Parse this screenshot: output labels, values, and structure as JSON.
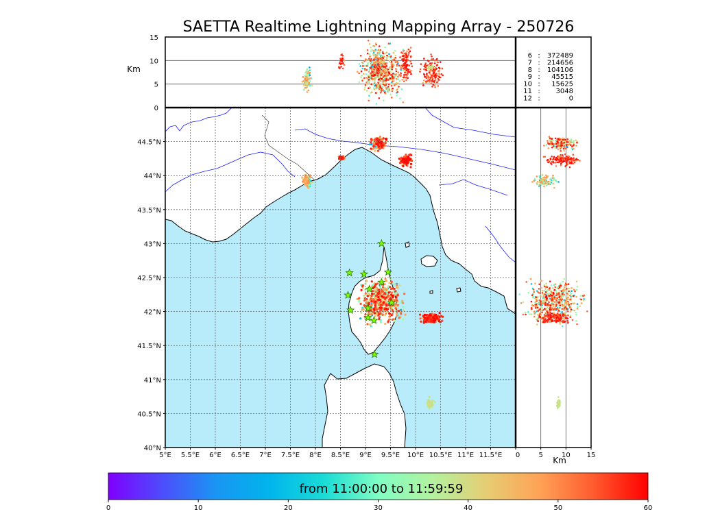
{
  "title": "SAETTA Realtime Lightning Mapping Array - 250726",
  "colors": {
    "sea": "#b8ecfb",
    "land": "#ffffff",
    "river": "#1a1aff",
    "coast": "#000000",
    "grid": "#666666",
    "highlight": "#ff0000"
  },
  "chart_data": {
    "type": "scatter",
    "x_axis": {
      "label": "",
      "ticks": [
        "5°E",
        "5.5°E",
        "6°E",
        "6.5°E",
        "7°E",
        "7.5°E",
        "8°E",
        "8.5°E",
        "9°E",
        "9.5°E",
        "10°E",
        "10.5°E",
        "11°E",
        "11.5°E"
      ],
      "range": [
        5,
        12
      ]
    },
    "y_axis": {
      "label": "",
      "ticks": [
        "40°N",
        "40.5°N",
        "41°N",
        "41.5°N",
        "42°N",
        "42.5°N",
        "43°N",
        "43.5°N",
        "44°N",
        "44.5°N"
      ],
      "range": [
        40,
        45
      ]
    },
    "top_panel": {
      "ylabel": "Km",
      "ticks": [
        "0",
        "5",
        "10",
        "15"
      ],
      "range": [
        0,
        15
      ]
    },
    "side_panel": {
      "xlabel": "Km",
      "ticks": [
        "0",
        "5",
        "10",
        "15"
      ],
      "range": [
        0,
        15
      ]
    },
    "station_counts": [
      {
        "stations": "6",
        "count": "372489",
        "highlight": true
      },
      {
        "stations": "7",
        "count": "214656",
        "highlight": false
      },
      {
        "stations": "8",
        "count": "104106",
        "highlight": false
      },
      {
        "stations": "9",
        "count": "45515",
        "highlight": false
      },
      {
        "stations": "10",
        "count": "15625",
        "highlight": false
      },
      {
        "stations": "11",
        "count": "3048",
        "highlight": false
      },
      {
        "stations": "12",
        "count": "0",
        "highlight": false
      }
    ],
    "colorbar": {
      "label": "from 11:00:00 to 11:59:59",
      "ticks": [
        "0",
        "10",
        "20",
        "30",
        "40",
        "50",
        "60"
      ],
      "range": [
        0,
        60
      ],
      "colors": [
        "#7f00ff",
        "#4d4dfc",
        "#1996f3",
        "#00b5eb",
        "#1adcd6",
        "#7ffec4",
        "#b3f29f",
        "#e6cd73",
        "#ffa256",
        "#ff5a2e",
        "#ff0000"
      ]
    },
    "lightning_clusters": [
      {
        "lon": [
          8.45,
          8.6
        ],
        "lat": [
          44.22,
          44.3
        ],
        "t": [
          45,
          60
        ],
        "alt": [
          7,
          12
        ]
      },
      {
        "lon": [
          9.05,
          9.5
        ],
        "lat": [
          44.35,
          44.6
        ],
        "t": [
          8,
          60
        ],
        "alt": [
          5,
          13
        ]
      },
      {
        "lon": [
          9.65,
          9.95
        ],
        "lat": [
          44.1,
          44.35
        ],
        "t": [
          45,
          60
        ],
        "alt": [
          4,
          14
        ]
      },
      {
        "lon": [
          7.7,
          7.95
        ],
        "lat": [
          43.8,
          44.05
        ],
        "t": [
          5,
          50
        ],
        "alt": [
          3,
          9
        ]
      },
      {
        "lon": [
          8.75,
          9.9
        ],
        "lat": [
          41.75,
          42.55
        ],
        "t": [
          10,
          60
        ],
        "alt": [
          0,
          15
        ]
      },
      {
        "lon": [
          10.05,
          10.6
        ],
        "lat": [
          41.8,
          42.0
        ],
        "t": [
          45,
          60
        ],
        "alt": [
          3,
          12
        ]
      },
      {
        "lon": [
          10.2,
          10.4
        ],
        "lat": [
          40.55,
          40.75
        ],
        "t": [
          28,
          40
        ],
        "alt": [
          8,
          9
        ]
      }
    ],
    "flash_markers": [
      {
        "lon": 8.68,
        "lat": 42.57
      },
      {
        "lon": 8.97,
        "lat": 42.55
      },
      {
        "lon": 9.32,
        "lat": 43.0
      },
      {
        "lon": 9.45,
        "lat": 42.58
      },
      {
        "lon": 8.65,
        "lat": 42.24
      },
      {
        "lon": 9.08,
        "lat": 42.33
      },
      {
        "lon": 9.32,
        "lat": 42.43
      },
      {
        "lon": 8.7,
        "lat": 42.02
      },
      {
        "lon": 9.05,
        "lat": 42.05
      },
      {
        "lon": 9.52,
        "lat": 42.13
      },
      {
        "lon": 9.17,
        "lat": 41.87
      },
      {
        "lon": 9.18,
        "lat": 41.37
      },
      {
        "lon": 9.05,
        "lat": 41.91
      }
    ]
  }
}
